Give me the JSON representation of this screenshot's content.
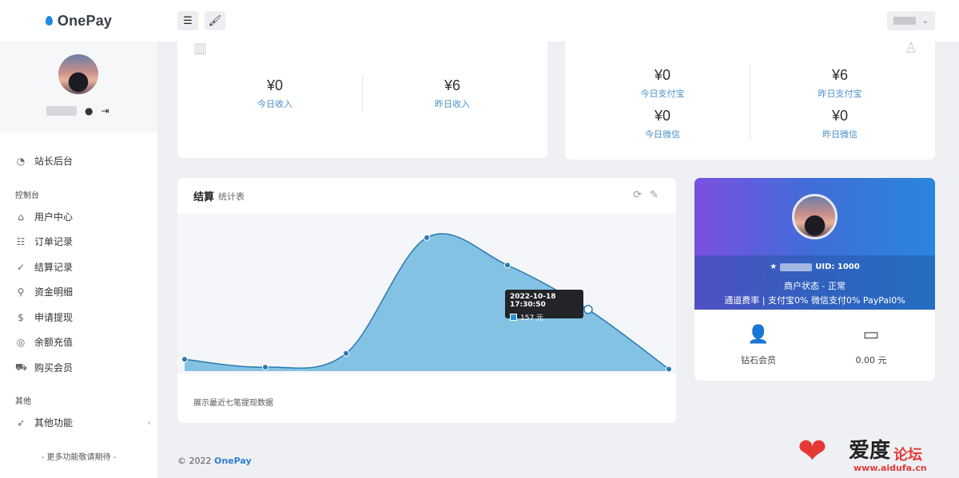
{
  "brand": {
    "name": "OnePay"
  },
  "header": {
    "menu_icon": "menu-icon",
    "brush_icon": "brush-icon"
  },
  "sidebar": {
    "top_item": {
      "label": "站长后台",
      "icon": "dashboard-icon"
    },
    "section_control": "控制台",
    "items": [
      {
        "label": "用户中心",
        "icon": "home-icon"
      },
      {
        "label": "订单记录",
        "icon": "list-icon"
      },
      {
        "label": "结算记录",
        "icon": "check-circle-icon"
      },
      {
        "label": "资金明细",
        "icon": "search-icon"
      },
      {
        "label": "申请提现",
        "icon": "dollar-icon"
      },
      {
        "label": "余额充值",
        "icon": "recharge-icon"
      },
      {
        "label": "购买会员",
        "icon": "cart-icon"
      }
    ],
    "section_other": "其他",
    "other_item": {
      "label": "其他功能",
      "icon": "rocket-icon"
    },
    "more_note": "- 更多功能敬请期待 -"
  },
  "income_card": {
    "today_value": "¥0",
    "today_label": "今日收入",
    "yesterday_value": "¥6",
    "yesterday_label": "昨日收入"
  },
  "pay_card": {
    "alipay_today_value": "¥0",
    "alipay_today_label": "今日支付宝",
    "alipay_yesterday_value": "¥6",
    "alipay_yesterday_label": "昨日支付宝",
    "wechat_today_value": "¥0",
    "wechat_today_label": "今日微信",
    "wechat_yesterday_value": "¥0",
    "wechat_yesterday_label": "昨日微信"
  },
  "settle_card": {
    "title": "结算",
    "subtitle": "统计表",
    "footer": "展示最近七笔提现数据",
    "tooltip": {
      "date": "2022-10-18 17:30:50",
      "value": "157 元"
    }
  },
  "chart_data": {
    "type": "area",
    "x": [
      1,
      2,
      3,
      4,
      5,
      6,
      7
    ],
    "values": [
      30,
      10,
      45,
      340,
      270,
      157,
      5
    ],
    "ylim": [
      0,
      360
    ],
    "grid": false,
    "color": "#84c2e4",
    "line_color": "#2979b0"
  },
  "merchant_card": {
    "uid": "UID: 1000",
    "status": "商户状态 - 正常",
    "rates": "通道费率 | 支付宝0% 微信支付0% PayPal0%",
    "member_label": "钻石会员",
    "balance": "0.00 元"
  },
  "footer": {
    "copyright": "© 2022",
    "brand": "OnePay"
  },
  "watermark": {
    "title": "爱度",
    "subtitle": "论坛",
    "url": "www.aidufa.cn"
  }
}
